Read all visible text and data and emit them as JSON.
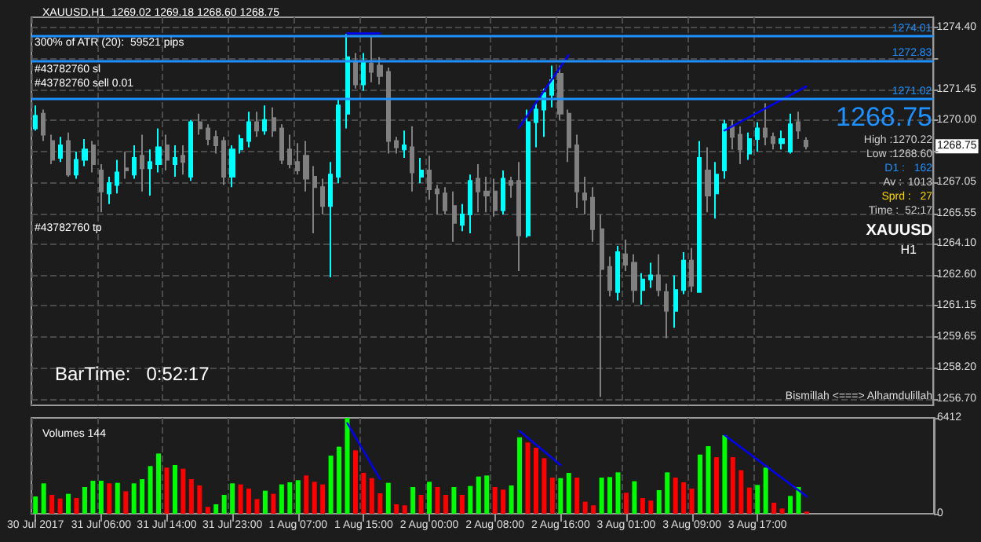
{
  "chart_data": [
    {
      "type": "candlestick",
      "title": "XAUUSD,H1  1269.02 1269.18 1268.60 1268.75",
      "categories": [
        null,
        null,
        null,
        null,
        null,
        null,
        null,
        null,
        null,
        null,
        null,
        null,
        null,
        null,
        null,
        null,
        null,
        null,
        null,
        null,
        null,
        null,
        null,
        null,
        null,
        null,
        null,
        null,
        null,
        null,
        null,
        null,
        null,
        null,
        null,
        null,
        null,
        null,
        null,
        null,
        null,
        null,
        null,
        null,
        null,
        null,
        null,
        null,
        null,
        null,
        null,
        null,
        null,
        null,
        null,
        null,
        null,
        null,
        null,
        null,
        null,
        null,
        null,
        null,
        null,
        null,
        null,
        null,
        null,
        null,
        null,
        null,
        null,
        null,
        null,
        null,
        null,
        null,
        null,
        null,
        null,
        null,
        null,
        null,
        null,
        null,
        null,
        null,
        null,
        null,
        null,
        null,
        null,
        null,
        null,
        null,
        null,
        null,
        null,
        null,
        null,
        null,
        null,
        null,
        null,
        null,
        null,
        null,
        null,
        null
      ],
      "ohlc": [
        [
          1269.6,
          1270.7,
          1269.5,
          1270.2
        ],
        [
          1270.3,
          1270.5,
          1269.0,
          1269.3
        ],
        [
          1269.0,
          1269.3,
          1267.9,
          1268.1
        ],
        [
          1268.2,
          1269.2,
          1268.0,
          1268.8
        ],
        [
          1269.0,
          1269.4,
          1267.3,
          1267.4
        ],
        [
          1267.4,
          1268.5,
          1267.2,
          1268.1
        ],
        [
          1268.1,
          1269.1,
          1267.8,
          1268.6
        ],
        [
          1268.8,
          1269.0,
          1267.5,
          1267.9
        ],
        [
          1267.6,
          1267.9,
          1265.6,
          1266.6
        ],
        [
          1266.5,
          1267.3,
          1266.0,
          1267.0
        ],
        [
          1266.9,
          1268.1,
          1266.5,
          1267.5
        ],
        [
          1267.7,
          1268.5,
          1267.2,
          1267.6
        ],
        [
          1267.4,
          1268.8,
          1267.2,
          1268.2
        ],
        [
          1268.3,
          1269.3,
          1266.6,
          1267.7
        ],
        [
          1267.7,
          1268.6,
          1266.4,
          1268.0
        ],
        [
          1267.9,
          1269.6,
          1267.5,
          1268.7
        ],
        [
          1268.8,
          1269.3,
          1267.6,
          1268.1
        ],
        [
          1267.9,
          1268.8,
          1267.3,
          1268.2
        ],
        [
          1268.3,
          1268.8,
          1267.4,
          1268.0
        ],
        [
          1267.3,
          1270.0,
          1267.1,
          1269.9
        ],
        [
          1269.9,
          1270.3,
          1269.3,
          1269.6
        ],
        [
          1269.6,
          1269.8,
          1268.8,
          1269.1
        ],
        [
          1269.2,
          1269.5,
          1268.4,
          1268.8
        ],
        [
          1269.0,
          1269.2,
          1266.9,
          1267.3
        ],
        [
          1267.3,
          1268.8,
          1266.8,
          1268.6
        ],
        [
          1268.6,
          1269.3,
          1268.4,
          1269.1
        ],
        [
          1269.0,
          1270.4,
          1268.7,
          1269.9
        ],
        [
          1269.9,
          1270.4,
          1269.2,
          1269.5
        ],
        [
          1269.5,
          1270.7,
          1269.3,
          1270.0
        ],
        [
          1270.1,
          1270.6,
          1269.2,
          1269.5
        ],
        [
          1269.6,
          1269.8,
          1267.9,
          1268.1
        ],
        [
          1268.6,
          1269.3,
          1267.7,
          1267.9
        ],
        [
          1268.0,
          1268.9,
          1267.4,
          1267.6
        ],
        [
          1268.3,
          1269.0,
          1266.6,
          1267.2
        ],
        [
          1267.3,
          1267.8,
          1264.6,
          1266.8
        ],
        [
          1266.8,
          1267.2,
          1265.5,
          1265.9
        ],
        [
          1265.9,
          1268.0,
          1262.5,
          1267.4
        ],
        [
          1267.3,
          1271.0,
          1267.0,
          1270.7
        ],
        [
          1270.3,
          1274.1,
          1269.6,
          1273.0
        ],
        [
          1272.8,
          1273.2,
          1271.5,
          1271.7
        ],
        [
          1271.7,
          1273.2,
          1271.4,
          1272.8
        ],
        [
          1272.7,
          1274.0,
          1271.8,
          1272.3
        ],
        [
          1272.6,
          1273.0,
          1271.7,
          1272.1
        ],
        [
          1272.3,
          1272.5,
          1268.4,
          1269.0
        ],
        [
          1269.0,
          1269.2,
          1268.4,
          1268.7
        ],
        [
          1268.6,
          1269.5,
          1268.2,
          1268.8
        ],
        [
          1268.7,
          1269.7,
          1266.6,
          1267.5
        ],
        [
          1267.3,
          1268.2,
          1267.0,
          1267.6
        ],
        [
          1267.6,
          1268.3,
          1266.2,
          1266.7
        ],
        [
          1266.7,
          1266.9,
          1265.5,
          1266.5
        ],
        [
          1266.5,
          1266.8,
          1265.5,
          1265.7
        ],
        [
          1265.9,
          1266.6,
          1264.2,
          1265.1
        ],
        [
          1265.0,
          1266.0,
          1264.7,
          1265.5
        ],
        [
          1265.5,
          1267.4,
          1264.6,
          1267.1
        ],
        [
          1267.2,
          1267.9,
          1265.6,
          1266.6
        ],
        [
          1266.6,
          1267.3,
          1265.6,
          1266.4
        ],
        [
          1266.6,
          1267.2,
          1265.4,
          1265.7
        ],
        [
          1265.7,
          1267.6,
          1265.5,
          1267.2
        ],
        [
          1267.1,
          1267.3,
          1266.3,
          1266.9
        ],
        [
          1267.1,
          1268.0,
          1262.8,
          1264.5
        ],
        [
          1264.5,
          1270.5,
          1264.4,
          1269.9
        ],
        [
          1269.9,
          1270.8,
          1268.7,
          1270.5
        ],
        [
          1270.5,
          1271.5,
          1269.2,
          1271.3
        ],
        [
          1271.2,
          1272.6,
          1270.6,
          1271.9
        ],
        [
          1272.2,
          1272.6,
          1270.0,
          1270.3
        ],
        [
          1270.3,
          1270.5,
          1268.0,
          1268.7
        ],
        [
          1268.8,
          1269.3,
          1265.8,
          1266.6
        ],
        [
          1266.5,
          1267.3,
          1265.5,
          1266.2
        ],
        [
          1266.3,
          1266.8,
          1264.2,
          1264.8
        ],
        [
          1264.8,
          1265.5,
          1256.8,
          1262.9
        ],
        [
          1263.0,
          1263.5,
          1261.6,
          1261.9
        ],
        [
          1261.8,
          1264.0,
          1261.4,
          1263.7
        ],
        [
          1263.6,
          1264.3,
          1262.8,
          1263.1
        ],
        [
          1263.2,
          1263.6,
          1261.3,
          1261.9
        ],
        [
          1261.9,
          1262.7,
          1261.2,
          1262.4
        ],
        [
          1262.4,
          1263.2,
          1262.0,
          1262.6
        ],
        [
          1262.6,
          1263.6,
          1261.6,
          1261.9
        ],
        [
          1261.8,
          1262.2,
          1259.6,
          1260.9
        ],
        [
          1260.9,
          1262.6,
          1260.1,
          1261.9
        ],
        [
          1261.9,
          1263.7,
          1261.7,
          1263.3
        ],
        [
          1263.3,
          1263.9,
          1261.8,
          1262.1
        ],
        [
          1261.8,
          1269.0,
          1261.8,
          1268.2
        ],
        [
          1267.6,
          1268.7,
          1265.6,
          1266.4
        ],
        [
          1266.5,
          1268.0,
          1265.3,
          1267.4
        ],
        [
          1267.6,
          1270.0,
          1267.2,
          1269.8
        ],
        [
          1269.7,
          1270.0,
          1268.6,
          1269.2
        ],
        [
          1269.3,
          1269.7,
          1267.9,
          1268.6
        ],
        [
          1268.4,
          1269.4,
          1268.1,
          1269.1
        ],
        [
          1269.1,
          1269.9,
          1268.5,
          1269.6
        ],
        [
          1269.6,
          1270.8,
          1268.8,
          1269.2
        ],
        [
          1269.2,
          1269.4,
          1268.6,
          1268.9
        ],
        [
          1268.9,
          1269.5,
          1268.6,
          1269.1
        ],
        [
          1268.5,
          1270.3,
          1268.4,
          1269.8
        ],
        [
          1269.9,
          1270.4,
          1269.1,
          1269.5
        ],
        [
          1269.02,
          1269.18,
          1268.6,
          1268.75
        ],
        null,
        null,
        null,
        null,
        null,
        null,
        null,
        null,
        null,
        null,
        null,
        null,
        null,
        null,
        null
      ],
      "colors": [
        "#00ffff",
        "#808080",
        "#808080",
        "#00ffff",
        "#808080",
        "#00ffff",
        "#00ffff",
        "#808080",
        "#808080",
        "#00ffff",
        "#00ffff",
        "#808080",
        "#00ffff",
        "#808080",
        "#00ffff",
        "#00ffff",
        "#808080",
        "#00ffff",
        "#808080",
        "#00ffff",
        "#808080",
        "#808080",
        "#808080",
        "#808080",
        "#00ffff",
        "#00ffff",
        "#00ffff",
        "#808080",
        "#00ffff",
        "#808080",
        "#808080",
        "#808080",
        "#808080",
        "#808080",
        "#808080",
        "#808080",
        "#00ffff",
        "#00ffff",
        "#00ffff",
        "#808080",
        "#00ffff",
        "#808080",
        "#808080",
        "#808080",
        "#808080",
        "#00ffff",
        "#808080",
        "#00ffff",
        "#808080",
        "#808080",
        "#808080",
        "#808080",
        "#00ffff",
        "#00ffff",
        "#808080",
        "#808080",
        "#808080",
        "#00ffff",
        "#808080",
        "#808080",
        "#00ffff",
        "#00ffff",
        "#00ffff",
        "#00ffff",
        "#808080",
        "#808080",
        "#808080",
        "#808080",
        "#808080",
        "#808080",
        "#808080",
        "#00ffff",
        "#808080",
        "#808080",
        "#00ffff",
        "#00ffff",
        "#808080",
        "#808080",
        "#00ffff",
        "#00ffff",
        "#808080",
        "#00ffff",
        "#808080",
        "#00ffff",
        "#00ffff",
        "#808080",
        "#808080",
        "#00ffff",
        "#00ffff",
        "#808080",
        "#808080",
        "#00ffff",
        "#00ffff",
        "#808080",
        "#808080",
        null,
        null,
        null,
        null,
        null,
        null,
        null,
        null,
        null,
        null,
        null,
        null,
        null,
        null,
        null
      ],
      "series": [
        {
          "type": "line",
          "color": "#0000ff",
          "values": [
            null,
            null,
            null,
            null,
            null,
            null,
            null,
            null,
            null,
            null,
            null,
            null,
            null,
            null,
            null,
            null,
            null,
            null,
            null,
            null,
            null,
            null,
            null,
            null,
            null,
            null,
            null,
            null,
            null,
            null,
            null,
            null,
            null,
            null,
            null,
            null,
            null,
            null,
            1274.13,
            null,
            null,
            null,
            1274.13,
            null,
            null,
            null,
            null,
            null,
            null,
            null,
            null,
            null,
            null,
            null,
            null,
            null,
            null,
            null,
            null,
            null,
            null,
            null,
            null,
            null,
            null,
            null,
            null,
            null,
            null,
            null,
            null,
            null,
            null,
            null,
            null,
            null,
            null,
            null,
            null,
            null,
            null,
            null,
            null,
            null,
            null,
            null,
            null,
            null,
            null,
            null,
            null,
            null,
            null,
            null,
            null,
            null,
            null,
            null,
            null,
            null,
            null,
            null,
            null,
            null,
            null,
            null,
            null,
            null,
            null,
            null
          ]
        },
        {
          "type": "line",
          "color": "#0000ff",
          "values": [
            null,
            null,
            null,
            null,
            null,
            null,
            null,
            null,
            null,
            null,
            null,
            null,
            null,
            null,
            null,
            null,
            null,
            null,
            null,
            null,
            null,
            null,
            null,
            null,
            null,
            null,
            null,
            null,
            null,
            null,
            null,
            null,
            null,
            null,
            null,
            null,
            null,
            null,
            null,
            null,
            null,
            null,
            null,
            null,
            null,
            null,
            null,
            null,
            null,
            null,
            null,
            null,
            null,
            null,
            null,
            null,
            null,
            null,
            null,
            1269.65,
            null,
            null,
            null,
            null,
            null,
            1273.1,
            null,
            null,
            null,
            null,
            null,
            null,
            null,
            null,
            null,
            null,
            null,
            null,
            null,
            null,
            null,
            null,
            null,
            null,
            null,
            null,
            null,
            null,
            null,
            null,
            null,
            null,
            null,
            null,
            null,
            null,
            null,
            null,
            null,
            null,
            null,
            null,
            null,
            null,
            null,
            null,
            null,
            null,
            null,
            null
          ]
        },
        {
          "type": "line",
          "color": "#0000ff",
          "values": [
            null,
            null,
            null,
            null,
            null,
            null,
            null,
            null,
            null,
            null,
            null,
            null,
            null,
            null,
            null,
            null,
            null,
            null,
            null,
            null,
            null,
            null,
            null,
            null,
            null,
            null,
            null,
            null,
            null,
            null,
            null,
            null,
            null,
            null,
            null,
            null,
            null,
            null,
            null,
            null,
            null,
            null,
            null,
            null,
            null,
            null,
            null,
            null,
            null,
            null,
            null,
            null,
            null,
            null,
            null,
            null,
            null,
            null,
            null,
            null,
            null,
            null,
            null,
            null,
            null,
            null,
            null,
            null,
            null,
            null,
            null,
            null,
            null,
            null,
            null,
            null,
            null,
            null,
            null,
            null,
            null,
            null,
            null,
            null,
            1269.5,
            null,
            null,
            null,
            null,
            null,
            null,
            null,
            null,
            null,
            1271.6,
            null,
            null,
            null,
            null,
            null,
            null,
            null,
            null,
            null,
            null,
            null,
            null,
            null,
            null,
            null
          ]
        }
      ],
      "ylim": [
        1256.4,
        1274.9
      ],
      "yticks": [
        {
          "value": 1274.4,
          "label": "1274.40"
        },
        {
          "value": 1272.9,
          "label": null
        },
        {
          "value": 1271.45,
          "label": "1271.45"
        },
        {
          "value": 1270,
          "label": "1270.00"
        },
        {
          "value": 1268.55,
          "label": null
        },
        {
          "value": 1267.05,
          "label": "1267.05"
        },
        {
          "value": 1265.55,
          "label": "1265.55"
        },
        {
          "value": 1264.1,
          "label": "1264.10"
        },
        {
          "value": 1262.6,
          "label": "1262.60"
        },
        {
          "value": 1261.15,
          "label": "1261.15"
        },
        {
          "value": 1259.65,
          "label": "1259.65"
        },
        {
          "value": 1258.2,
          "label": "1258.20"
        },
        {
          "value": 1256.7,
          "label": "1256.70"
        }
      ],
      "grid": true,
      "tick_labels": "y",
      "ref_lines": [
        {
          "axis": "y",
          "value": 1274.01,
          "label": "1274.01",
          "color": "#1e90ff"
        },
        {
          "axis": "y",
          "value": 1272.83,
          "label": "1272.83",
          "color": "#1e90ff"
        },
        {
          "axis": "y",
          "value": 1271.02,
          "label": "1271.02",
          "color": "#1e90ff"
        }
      ],
      "annotations": [
        "300% of ATR (20):  59521 pips",
        "#43782760 sl",
        "#43782760 sell 0.01",
        "#43782760 tp",
        "BarTime:   0:52:17",
        "Bismillah <===> Alhamdulillah",
        "1268.75",
        "High :1270.22",
        "Low :1268.60",
        "D1 :   162",
        "Av :  1013",
        "Sprd :   27",
        "Time :  52:17",
        "XAUUSD",
        "H1",
        {
          "text": "1268.75",
          "y": 1268.75
        }
      ]
    },
    {
      "type": "bar",
      "title": "Volumes 144",
      "categories": [
        "30 Jul 2017",
        null,
        null,
        null,
        null,
        null,
        null,
        null,
        "31 Jul 06:00",
        null,
        null,
        null,
        null,
        null,
        null,
        null,
        "31 Jul 14:00",
        null,
        null,
        null,
        null,
        null,
        null,
        null,
        "31 Jul 23:00",
        null,
        null,
        null,
        null,
        null,
        null,
        null,
        "1 Aug 07:00",
        null,
        null,
        null,
        null,
        null,
        null,
        null,
        "1 Aug 15:00",
        null,
        null,
        null,
        null,
        null,
        null,
        null,
        "2 Aug 00:00",
        null,
        null,
        null,
        null,
        null,
        null,
        null,
        "2 Aug 08:00",
        null,
        null,
        null,
        null,
        null,
        null,
        null,
        "2 Aug 16:00",
        null,
        null,
        null,
        null,
        null,
        null,
        null,
        "3 Aug 01:00",
        null,
        null,
        null,
        null,
        null,
        null,
        null,
        "3 Aug 09:00",
        null,
        null,
        null,
        null,
        null,
        null,
        null,
        "3 Aug 17:00",
        null,
        null,
        null,
        null,
        null,
        null,
        null,
        null,
        null,
        null,
        null,
        null,
        null,
        null,
        null,
        null,
        null,
        null,
        null,
        null,
        null
      ],
      "values": [
        1156,
        2032,
        1261,
        1016,
        1332,
        1051,
        1787,
        2208,
        2208,
        2032,
        2067,
        1507,
        2032,
        2313,
        3189,
        4030,
        3084,
        3259,
        3013,
        2313,
        1892,
        456,
        631,
        1261,
        2032,
        1962,
        1682,
        981,
        1542,
        1332,
        1962,
        2102,
        2243,
        2558,
        2137,
        1962,
        3889,
        4485,
        6412,
        4240,
        2733,
        2383,
        1367,
        2067,
        631,
        561,
        1787,
        1261,
        2137,
        1787,
        1261,
        1787,
        1261,
        1857,
        2488,
        2558,
        1787,
        1612,
        1892,
        5116,
        4766,
        4415,
        3714,
        2418,
        2383,
        2733,
        2418,
        806,
        561,
        2418,
        2453,
        2768,
        1402,
        2173,
        1051,
        876,
        1577,
        2768,
        2418,
        2102,
        1682,
        3959,
        4520,
        3784,
        5256,
        3784,
        2908,
        1752,
        1927,
        3084,
        736,
        350,
        1191,
        1787,
        144,
        null,
        null,
        null,
        null,
        null,
        null,
        null,
        null,
        null,
        null,
        null,
        null,
        null,
        null,
        null
      ],
      "colors": [
        "#00ff00",
        "#00ff00",
        "#ff0000",
        "#ff0000",
        "#00ff00",
        "#ff0000",
        "#00ff00",
        "#00ff00",
        "#00ff00",
        "#ff0000",
        "#00ff00",
        "#ff0000",
        "#00ff00",
        "#00ff00",
        "#00ff00",
        "#00ff00",
        "#ff0000",
        "#00ff00",
        "#ff0000",
        "#ff0000",
        "#ff0000",
        "#ff0000",
        "#00ff00",
        "#00ff00",
        "#00ff00",
        "#ff0000",
        "#ff0000",
        "#ff0000",
        "#00ff00",
        "#ff0000",
        "#00ff00",
        "#00ff00",
        "#00ff00",
        "#ff0000",
        "#ff0000",
        "#ff0000",
        "#00ff00",
        "#00ff00",
        "#00ff00",
        "#ff0000",
        "#ff0000",
        "#ff0000",
        "#ff0000",
        "#00ff00",
        "#ff0000",
        "#ff0000",
        "#00ff00",
        "#ff0000",
        "#00ff00",
        "#ff0000",
        "#ff0000",
        "#00ff00",
        "#ff0000",
        "#00ff00",
        "#00ff00",
        "#00ff00",
        "#ff0000",
        "#ff0000",
        "#00ff00",
        "#00ff00",
        "#ff0000",
        "#ff0000",
        "#ff0000",
        "#ff0000",
        "#00ff00",
        "#00ff00",
        "#ff0000",
        "#ff0000",
        "#ff0000",
        "#00ff00",
        "#00ff00",
        "#00ff00",
        "#ff0000",
        "#00ff00",
        "#ff0000",
        "#ff0000",
        "#00ff00",
        "#00ff00",
        "#ff0000",
        "#ff0000",
        "#ff0000",
        "#00ff00",
        "#00ff00",
        "#ff0000",
        "#00ff00",
        "#ff0000",
        "#ff0000",
        "#ff0000",
        "#00ff00",
        "#00ff00",
        "#ff0000",
        "#ff0000",
        "#00ff00",
        "#00ff00",
        "#ff0000",
        null,
        null,
        null,
        null,
        null,
        null,
        null,
        null,
        null,
        null,
        null,
        null,
        null,
        null,
        null
      ],
      "series": [
        {
          "type": "line",
          "color": "#0000ff",
          "values": [
            null,
            null,
            null,
            null,
            null,
            null,
            null,
            null,
            null,
            null,
            null,
            null,
            null,
            null,
            null,
            null,
            null,
            null,
            null,
            null,
            null,
            null,
            null,
            null,
            null,
            null,
            null,
            null,
            null,
            null,
            null,
            null,
            null,
            null,
            null,
            null,
            null,
            null,
            6062,
            null,
            null,
            null,
            2313,
            null,
            null,
            null,
            null,
            null,
            null,
            null,
            null,
            null,
            null,
            null,
            null,
            null,
            null,
            null,
            null,
            null,
            null,
            null,
            null,
            null,
            null,
            null,
            null,
            null,
            null,
            null,
            null,
            null,
            null,
            null,
            null,
            null,
            null,
            null,
            null,
            null,
            null,
            null,
            null,
            null,
            null,
            null,
            null,
            null,
            null,
            null,
            null,
            null,
            null,
            null,
            null,
            null,
            null,
            null,
            null,
            null,
            null,
            null,
            null,
            null,
            null,
            null,
            null,
            null,
            null,
            null
          ]
        },
        {
          "type": "line",
          "color": "#0000ff",
          "values": [
            null,
            null,
            null,
            null,
            null,
            null,
            null,
            null,
            null,
            null,
            null,
            null,
            null,
            null,
            null,
            null,
            null,
            null,
            null,
            null,
            null,
            null,
            null,
            null,
            null,
            null,
            null,
            null,
            null,
            null,
            null,
            null,
            null,
            null,
            null,
            null,
            null,
            null,
            null,
            null,
            null,
            null,
            null,
            null,
            null,
            null,
            null,
            null,
            null,
            null,
            null,
            null,
            null,
            null,
            null,
            null,
            null,
            null,
            null,
            5536,
            null,
            null,
            null,
            null,
            3259,
            null,
            null,
            null,
            null,
            null,
            null,
            null,
            null,
            null,
            null,
            null,
            null,
            null,
            null,
            null,
            null,
            null,
            null,
            null,
            null,
            null,
            null,
            null,
            null,
            null,
            null,
            null,
            null,
            null,
            null,
            null,
            null,
            null,
            null,
            null,
            null,
            null,
            null,
            null,
            null,
            null,
            null,
            null,
            null,
            null
          ]
        },
        {
          "type": "line",
          "color": "#0000ff",
          "values": [
            null,
            null,
            null,
            null,
            null,
            null,
            null,
            null,
            null,
            null,
            null,
            null,
            null,
            null,
            null,
            null,
            null,
            null,
            null,
            null,
            null,
            null,
            null,
            null,
            null,
            null,
            null,
            null,
            null,
            null,
            null,
            null,
            null,
            null,
            null,
            null,
            null,
            null,
            null,
            null,
            null,
            null,
            null,
            null,
            null,
            null,
            null,
            null,
            null,
            null,
            null,
            null,
            null,
            null,
            null,
            null,
            null,
            null,
            null,
            null,
            null,
            null,
            null,
            null,
            null,
            null,
            null,
            null,
            null,
            null,
            null,
            null,
            null,
            null,
            null,
            null,
            null,
            null,
            null,
            null,
            null,
            null,
            null,
            null,
            5256,
            null,
            null,
            null,
            null,
            null,
            null,
            null,
            null,
            null,
            1156,
            null,
            null,
            null,
            null,
            null,
            null,
            null,
            null,
            null,
            null,
            null,
            null,
            null,
            null,
            null
          ]
        }
      ],
      "ylim": [
        0,
        6412
      ],
      "yticks": [
        6412,
        0
      ],
      "grid": "x"
    }
  ]
}
